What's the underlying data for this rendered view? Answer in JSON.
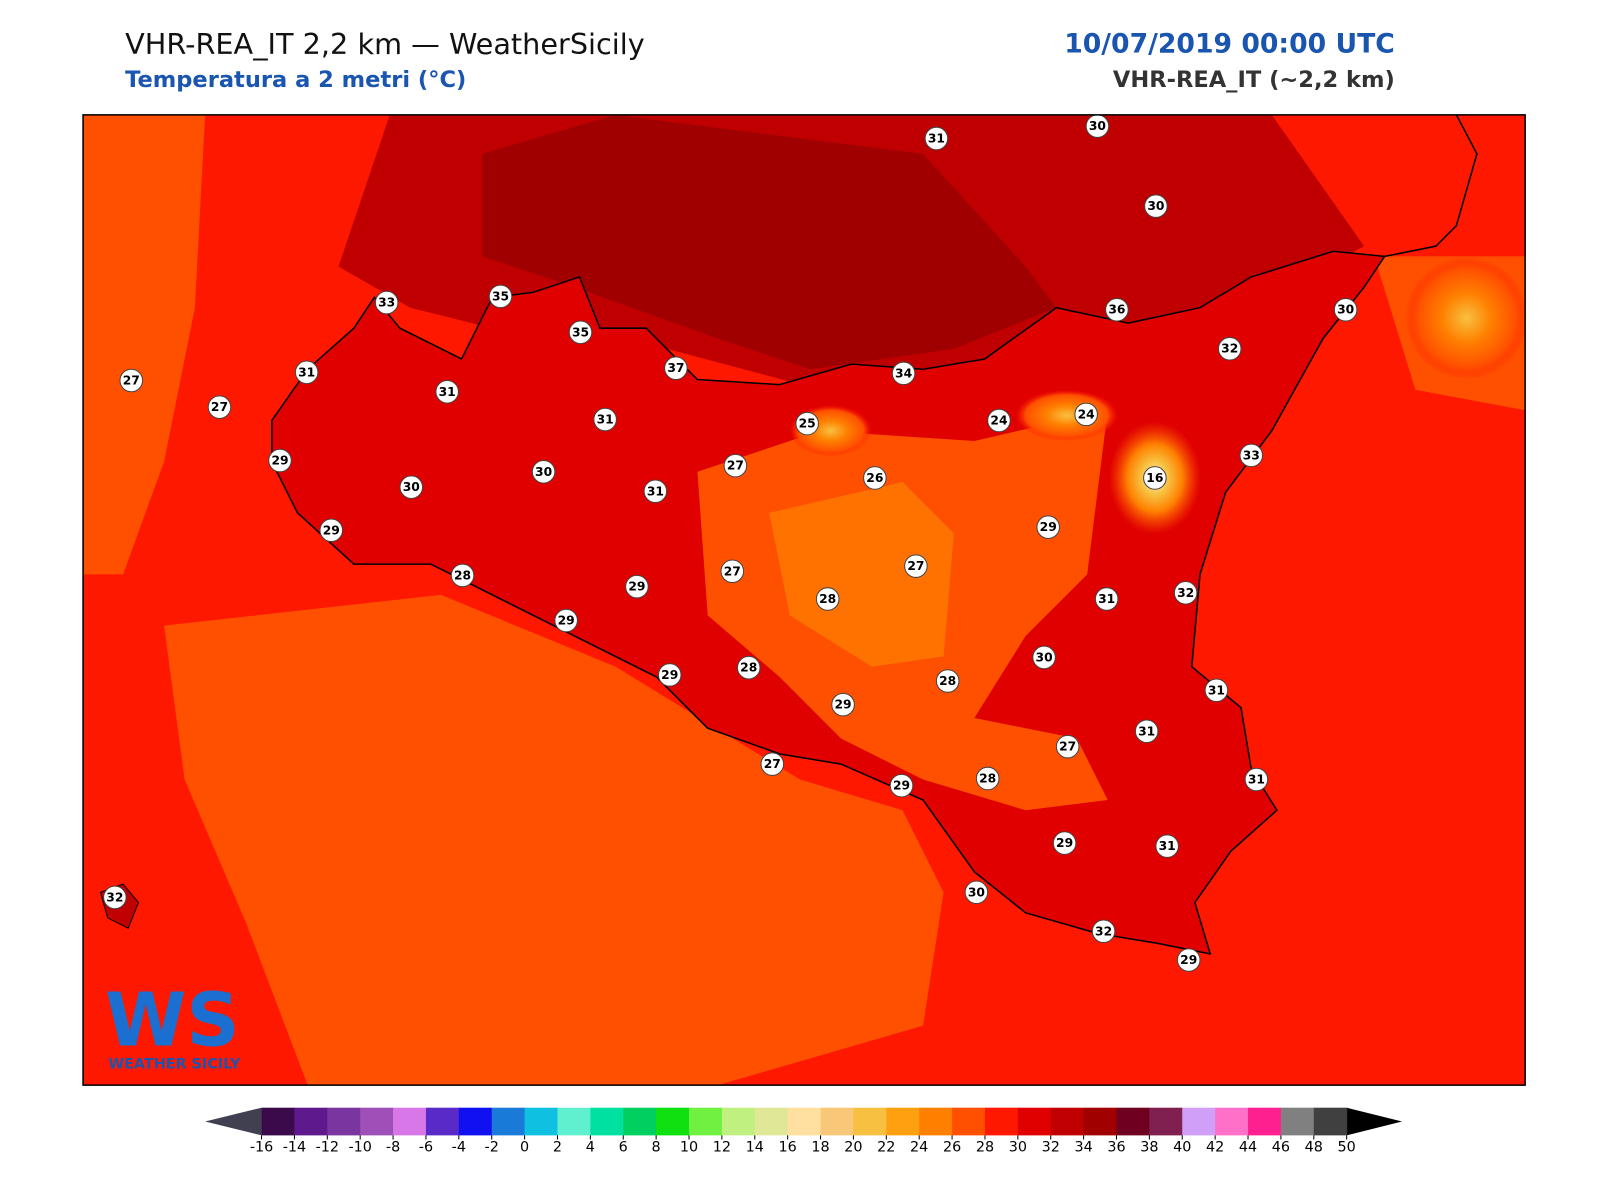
{
  "header": {
    "title": "VHR-REA_IT 2,2 km — WeatherSicily",
    "subtitle": "Temperatura a 2 metri (°C)",
    "datetime": "10/07/2019 00:00 UTC",
    "model": "VHR-REA_IT (~2,2 km)"
  },
  "stations": [
    31,
    30,
    30,
    33,
    35,
    35,
    31,
    27,
    27,
    31,
    37,
    34,
    36,
    30,
    32,
    31,
    25,
    24,
    24,
    29,
    30,
    30,
    31,
    27,
    26,
    16,
    33,
    29,
    29,
    27,
    27,
    28,
    29,
    28,
    31,
    32,
    29,
    30,
    29,
    28,
    28,
    29,
    31,
    31,
    27,
    27,
    29,
    28,
    31,
    29,
    31,
    30,
    32,
    32,
    29
  ],
  "colorbar": {
    "ticks": [
      -16,
      -14,
      -12,
      -10,
      -8,
      -6,
      -4,
      -2,
      0,
      2,
      4,
      6,
      8,
      10,
      12,
      14,
      16,
      18,
      20,
      22,
      24,
      26,
      28,
      30,
      32,
      34,
      36,
      38,
      40,
      42,
      44,
      46,
      48,
      50
    ],
    "colors": [
      "#3a0a4a",
      "#5e1a8c",
      "#7b35a0",
      "#9e50b8",
      "#d878e8",
      "#5a2ac8",
      "#1010f0",
      "#1a7ad8",
      "#10c0e0",
      "#60f0d0",
      "#00e0a0",
      "#00d060",
      "#10e010",
      "#70f040",
      "#c0f080",
      "#e0e898",
      "#ffe0a0",
      "#f8c878",
      "#f8c040",
      "#ffa010",
      "#ff8000",
      "#ff5000",
      "#ff1800",
      "#e00000",
      "#c00000",
      "#a00000",
      "#700020",
      "#802050",
      "#d0a0f8",
      "#ff70c8",
      "#ff2090",
      "#808080",
      "#404040"
    ],
    "under_color": "#404050",
    "over_color": "#000000"
  },
  "logo": {
    "mark": "WS",
    "name": "WEATHER SICILY"
  }
}
